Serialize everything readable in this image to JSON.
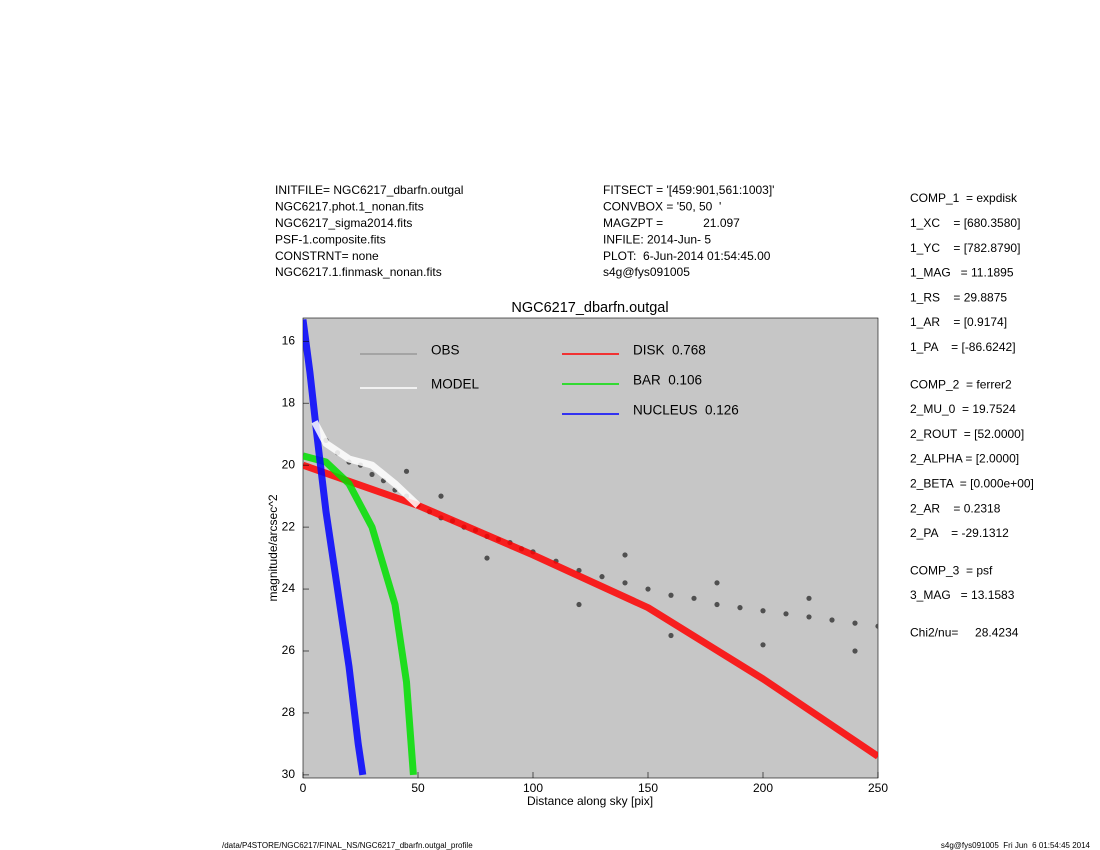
{
  "chart_data": {
    "type": "scatter",
    "title": "NGC6217_dbarfn.outgal",
    "xlabel": "Distance along sky [pix]",
    "ylabel": "magnitude/arcsec^2",
    "xlim": [
      0,
      250
    ],
    "ylim": [
      30.1,
      15.25
    ],
    "xticks": [
      0,
      50,
      100,
      150,
      200,
      250
    ],
    "yticks": [
      16,
      18,
      20,
      22,
      24,
      26,
      28,
      30
    ],
    "background": "#c6c6c6",
    "series": [
      {
        "name": "OBS",
        "color": "#505050",
        "legend_color": "#999999",
        "style": "points",
        "x": [
          10,
          15,
          20,
          25,
          30,
          35,
          40,
          45,
          50,
          55,
          60,
          65,
          70,
          75,
          80,
          85,
          90,
          95,
          100,
          110,
          120,
          130,
          140,
          150,
          160,
          170,
          180,
          190,
          200,
          210,
          220,
          230,
          240,
          250,
          45,
          60,
          80,
          120,
          140,
          160,
          180,
          200,
          220,
          240
        ],
        "values": [
          19.2,
          19.6,
          19.9,
          20.0,
          20.3,
          20.5,
          20.8,
          21.0,
          21.3,
          21.5,
          21.7,
          21.8,
          22.0,
          22.1,
          22.3,
          22.4,
          22.5,
          22.7,
          22.8,
          23.1,
          23.4,
          23.6,
          23.8,
          24.0,
          24.2,
          24.3,
          24.5,
          24.6,
          24.7,
          24.8,
          24.9,
          25.0,
          25.1,
          25.2,
          20.2,
          21.0,
          23.0,
          24.5,
          22.9,
          25.5,
          23.8,
          25.8,
          24.3,
          26.0
        ]
      },
      {
        "name": "MODEL",
        "color": "#ffffff",
        "legend_color": "#ffffff",
        "style": "line",
        "x": [
          5,
          10,
          20,
          30,
          40,
          50
        ],
        "values": [
          18.6,
          19.3,
          19.8,
          20.0,
          20.6,
          21.3
        ]
      },
      {
        "name": "DISK  0.768",
        "color": "#ff0000",
        "legend_color": "#ff0000",
        "style": "line",
        "x": [
          0,
          50,
          100,
          150,
          200,
          250
        ],
        "values": [
          20.0,
          21.3,
          22.9,
          24.6,
          26.9,
          29.4
        ]
      },
      {
        "name": "BAR  0.106",
        "color": "#00e000",
        "legend_color": "#00e000",
        "style": "line",
        "x": [
          0,
          10,
          20,
          30,
          40,
          45,
          48
        ],
        "values": [
          19.7,
          19.9,
          20.6,
          22.0,
          24.5,
          27.0,
          30.0
        ]
      },
      {
        "name": "NUCLEUS  0.126",
        "color": "#0000ff",
        "legend_color": "#0000ff",
        "style": "line",
        "x": [
          0,
          3,
          6,
          10,
          15,
          20,
          24,
          26
        ],
        "values": [
          15.3,
          17.0,
          19.0,
          21.5,
          24.0,
          26.5,
          29.0,
          30.0
        ]
      }
    ]
  },
  "header": {
    "left": [
      "INITFILE= NGC6217_dbarfn.outgal",
      "NGC6217.phot.1_nonan.fits",
      "NGC6217_sigma2014.fits",
      "PSF-1.composite.fits",
      "CONSTRNT= none",
      "NGC6217.1.finmask_nonan.fits"
    ],
    "center": [
      "FITSECT = '[459:901,561:1003]'",
      "CONVBOX = '50, 50  '",
      "MAGZPT =            21.097",
      "INFILE: 2014-Jun- 5",
      "PLOT:  6-Jun-2014 01:54:45.00",
      "s4g@fys091005"
    ]
  },
  "parameters": [
    [
      "COMP_1  = expdisk",
      "1_XC    = [680.3580]",
      "1_YC    = [782.8790]",
      "1_MAG   = 11.1895",
      "1_RS    = 29.8875",
      "1_AR    = [0.9174]",
      "1_PA    = [-86.6242]"
    ],
    [
      "COMP_2  = ferrer2",
      "2_MU_0  = 19.7524",
      "2_ROUT  = [52.0000]",
      "2_ALPHA = [2.0000]",
      "2_BETA  = [0.000e+00]",
      "2_AR    = 0.2318",
      "2_PA    = -29.1312"
    ],
    [
      "COMP_3  = psf",
      "3_MAG   = 13.1583"
    ],
    [
      "Chi2/nu=     28.4234"
    ]
  ],
  "footer": {
    "left": "/data/P4STORE/NGC6217/FINAL_NS/NGC6217_dbarfn.outgal_profile",
    "right": "s4g@fys091005  Fri Jun  6 01:54:45 2014"
  }
}
